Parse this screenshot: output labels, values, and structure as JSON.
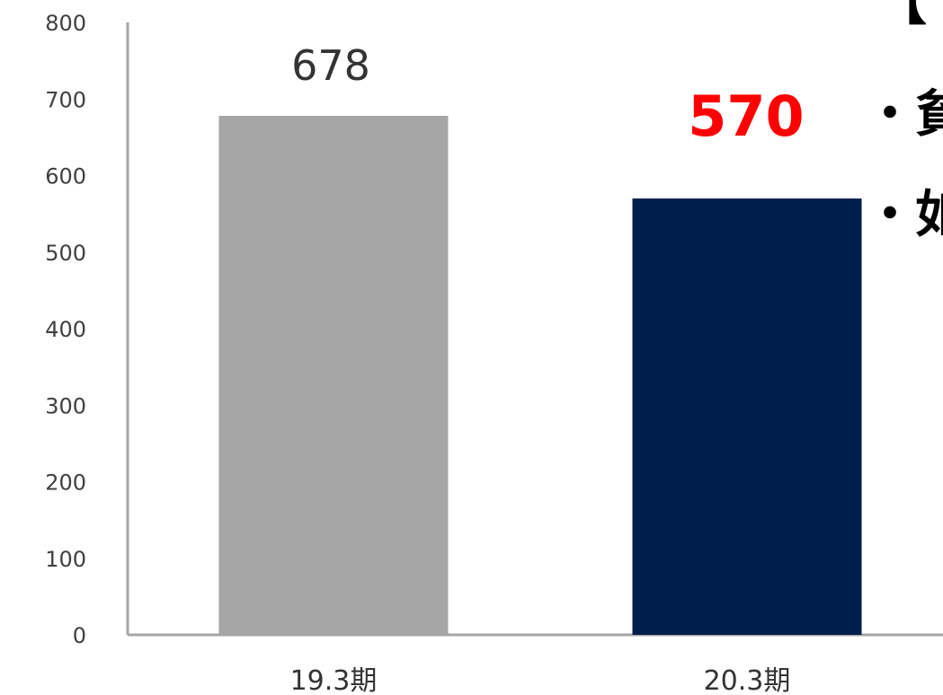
{
  "chart_data": {
    "type": "bar",
    "categories": [
      "19.3期",
      "20.3期"
    ],
    "values": [
      678,
      570
    ],
    "value_labels": [
      "678",
      "570"
    ],
    "bar_colors": [
      "#A6A6A6",
      "#001E4B"
    ],
    "highlight_label_color": "#FF0000",
    "ylim": [
      0,
      800
    ],
    "yticks": [
      "0",
      "100",
      "200",
      "300",
      "400",
      "500",
      "600",
      "700",
      "800"
    ],
    "grid": false,
    "title": "",
    "xlabel": "",
    "ylabel": ""
  },
  "side_text": {
    "bracket": "【",
    "bullet_1": "・貧",
    "bullet_2": "・如"
  }
}
